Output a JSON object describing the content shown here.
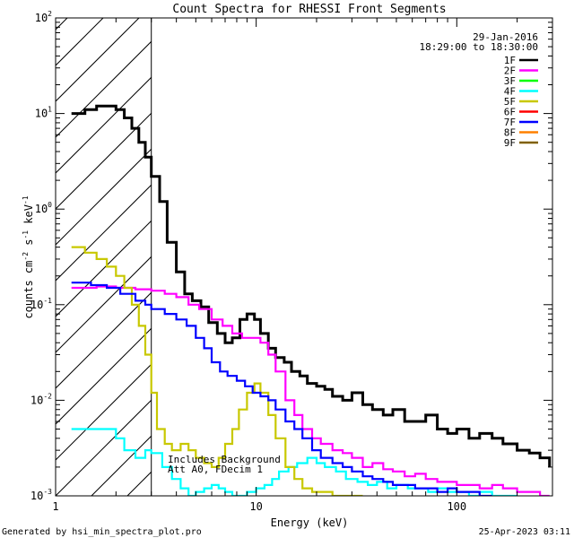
{
  "chart_data": {
    "type": "line",
    "title": "Count Spectra for RHESSI Front Segments",
    "xlabel": "Energy (keV)",
    "ylabel_parts": {
      "base": "counts cm",
      "exp1": "-2",
      "mid": " s",
      "exp2": "-1",
      "tail": " keV",
      "exp3": "-1"
    },
    "xscale": "log",
    "yscale": "log",
    "xlim": [
      1,
      300
    ],
    "ylim": [
      0.001,
      100
    ],
    "x_ticks": [
      {
        "value": 1,
        "label": "1"
      },
      {
        "value": 10,
        "label": "10"
      },
      {
        "value": 100,
        "label": "100"
      }
    ],
    "y_ticks": [
      {
        "value": 0.001,
        "base": "10",
        "exp": "-3"
      },
      {
        "value": 0.01,
        "base": "10",
        "exp": "-2"
      },
      {
        "value": 0.1,
        "base": "10",
        "exp": "-1"
      },
      {
        "value": 1,
        "base": "10",
        "exp": "0"
      },
      {
        "value": 10,
        "base": "10",
        "exp": "1"
      },
      {
        "value": 100,
        "base": "10",
        "exp": "2"
      }
    ],
    "shaded_region": {
      "x_start": 1,
      "x_end": 3,
      "style": "hatched"
    },
    "annotations": [
      "Includes Background",
      "Att A0, FDecim 1"
    ],
    "date": "29-Jan-2016",
    "time_range": "18:29:00 to 18:30:00",
    "legend_position": "top-right",
    "series": [
      {
        "name": "1F",
        "color": "#000000",
        "x": [
          1.2,
          1.4,
          1.6,
          1.8,
          2.0,
          2.2,
          2.4,
          2.6,
          2.8,
          3.0,
          3.3,
          3.6,
          4.0,
          4.4,
          4.8,
          5.3,
          5.8,
          6.4,
          7.0,
          7.6,
          8.3,
          9.0,
          9.8,
          10.5,
          11.5,
          12.5,
          13.8,
          15,
          16.5,
          18,
          20,
          22,
          24,
          27,
          30,
          34,
          38,
          43,
          48,
          55,
          62,
          70,
          80,
          90,
          100,
          115,
          130,
          150,
          170,
          200,
          230,
          260,
          290
        ],
        "y": [
          10,
          11,
          12,
          12,
          11,
          9,
          7,
          5,
          3.5,
          2.2,
          1.2,
          0.45,
          0.22,
          0.13,
          0.11,
          0.095,
          0.065,
          0.05,
          0.04,
          0.045,
          0.07,
          0.08,
          0.07,
          0.05,
          0.035,
          0.028,
          0.025,
          0.02,
          0.018,
          0.015,
          0.014,
          0.013,
          0.011,
          0.01,
          0.012,
          0.009,
          0.008,
          0.007,
          0.008,
          0.006,
          0.006,
          0.007,
          0.005,
          0.0045,
          0.005,
          0.004,
          0.0045,
          0.004,
          0.0035,
          0.003,
          0.0028,
          0.0025,
          0.002
        ]
      },
      {
        "name": "2F",
        "color": "#ff00ff",
        "x": [
          1.2,
          1.6,
          2.0,
          2.5,
          3.0,
          3.5,
          4.0,
          4.6,
          5.2,
          6.0,
          6.8,
          7.6,
          8.5,
          9.5,
          10.5,
          11.5,
          12.5,
          14,
          15.5,
          17,
          19,
          21,
          24,
          27,
          30,
          34,
          38,
          43,
          48,
          55,
          62,
          70,
          80,
          90,
          100,
          115,
          130,
          150,
          170,
          200,
          230,
          260,
          290
        ],
        "y": [
          0.15,
          0.155,
          0.15,
          0.145,
          0.14,
          0.13,
          0.12,
          0.1,
          0.09,
          0.07,
          0.06,
          0.05,
          0.045,
          0.045,
          0.04,
          0.03,
          0.02,
          0.01,
          0.007,
          0.005,
          0.004,
          0.0035,
          0.003,
          0.0028,
          0.0025,
          0.002,
          0.0022,
          0.0019,
          0.0018,
          0.0016,
          0.0017,
          0.0015,
          0.0014,
          0.0014,
          0.0013,
          0.0013,
          0.0012,
          0.0013,
          0.0012,
          0.0011,
          0.0011,
          0.001,
          0.001
        ]
      },
      {
        "name": "3F",
        "color": "#00ff00",
        "x": [],
        "y": []
      },
      {
        "name": "4F",
        "color": "#00ffff",
        "x": [
          1.2,
          1.6,
          2.0,
          2.2,
          2.5,
          2.8,
          3.0,
          3.4,
          3.8,
          4.2,
          4.6,
          5.0,
          5.5,
          6.0,
          6.5,
          7.0,
          7.6,
          8.2,
          9.0,
          10,
          11,
          12,
          13,
          14.5,
          16,
          18,
          20,
          22,
          25,
          28,
          32,
          36,
          40,
          45,
          50,
          57,
          64,
          72,
          80,
          90,
          100,
          115,
          130,
          150,
          170,
          200
        ],
        "y": [
          0.005,
          0.005,
          0.004,
          0.003,
          0.0025,
          0.003,
          0.0028,
          0.002,
          0.0015,
          0.0012,
          0.001,
          0.0011,
          0.0012,
          0.0013,
          0.0012,
          0.0011,
          0.001,
          0.001,
          0.0011,
          0.0012,
          0.0013,
          0.0015,
          0.0018,
          0.002,
          0.0022,
          0.0025,
          0.0022,
          0.002,
          0.0018,
          0.0015,
          0.0014,
          0.0013,
          0.0014,
          0.0012,
          0.0013,
          0.0012,
          0.0012,
          0.0011,
          0.0012,
          0.0011,
          0.0011,
          0.001,
          0.0011,
          0.001,
          0.001,
          0.001
        ]
      },
      {
        "name": "5F",
        "color": "#c8c800",
        "x": [
          1.2,
          1.4,
          1.6,
          1.8,
          2.0,
          2.2,
          2.4,
          2.6,
          2.8,
          3.0,
          3.2,
          3.5,
          3.8,
          4.2,
          4.6,
          5.0,
          5.5,
          6.0,
          6.5,
          7.0,
          7.6,
          8.2,
          9.0,
          9.8,
          10.5,
          11.5,
          12.5,
          14,
          15.5,
          17,
          19,
          21,
          24,
          27,
          30,
          34
        ],
        "y": [
          0.4,
          0.35,
          0.3,
          0.25,
          0.2,
          0.15,
          0.1,
          0.06,
          0.03,
          0.012,
          0.005,
          0.0035,
          0.003,
          0.0035,
          0.003,
          0.0025,
          0.0022,
          0.002,
          0.0025,
          0.0035,
          0.005,
          0.008,
          0.012,
          0.015,
          0.012,
          0.007,
          0.004,
          0.002,
          0.0015,
          0.0012,
          0.0011,
          0.0011,
          0.001,
          0.001,
          0.001,
          0.001
        ]
      },
      {
        "name": "6F",
        "color": "#ff0000",
        "x": [],
        "y": []
      },
      {
        "name": "7F",
        "color": "#0000ff",
        "x": [
          1.2,
          1.5,
          1.8,
          2.1,
          2.5,
          2.8,
          3.0,
          3.5,
          4.0,
          4.5,
          5.0,
          5.5,
          6.0,
          6.6,
          7.2,
          8.0,
          8.8,
          9.6,
          10.5,
          11.5,
          12.5,
          14,
          15.5,
          17,
          19,
          21,
          24,
          27,
          30,
          34,
          38,
          43,
          48,
          55,
          62,
          70,
          80,
          90,
          100,
          115,
          130,
          150
        ],
        "y": [
          0.17,
          0.16,
          0.15,
          0.13,
          0.11,
          0.1,
          0.09,
          0.08,
          0.07,
          0.06,
          0.045,
          0.035,
          0.025,
          0.02,
          0.018,
          0.016,
          0.014,
          0.012,
          0.011,
          0.01,
          0.008,
          0.006,
          0.005,
          0.004,
          0.003,
          0.0025,
          0.0022,
          0.002,
          0.0018,
          0.0016,
          0.0015,
          0.0014,
          0.0013,
          0.0013,
          0.0012,
          0.0012,
          0.0011,
          0.0012,
          0.0011,
          0.0011,
          0.001,
          0.001
        ]
      },
      {
        "name": "8F",
        "color": "#ff8000",
        "x": [],
        "y": []
      },
      {
        "name": "9F",
        "color": "#806000",
        "x": [],
        "y": []
      }
    ]
  },
  "footer": {
    "left": "Generated by hsi_min_spectra_plot.pro",
    "right": "25-Apr-2023 03:11"
  }
}
